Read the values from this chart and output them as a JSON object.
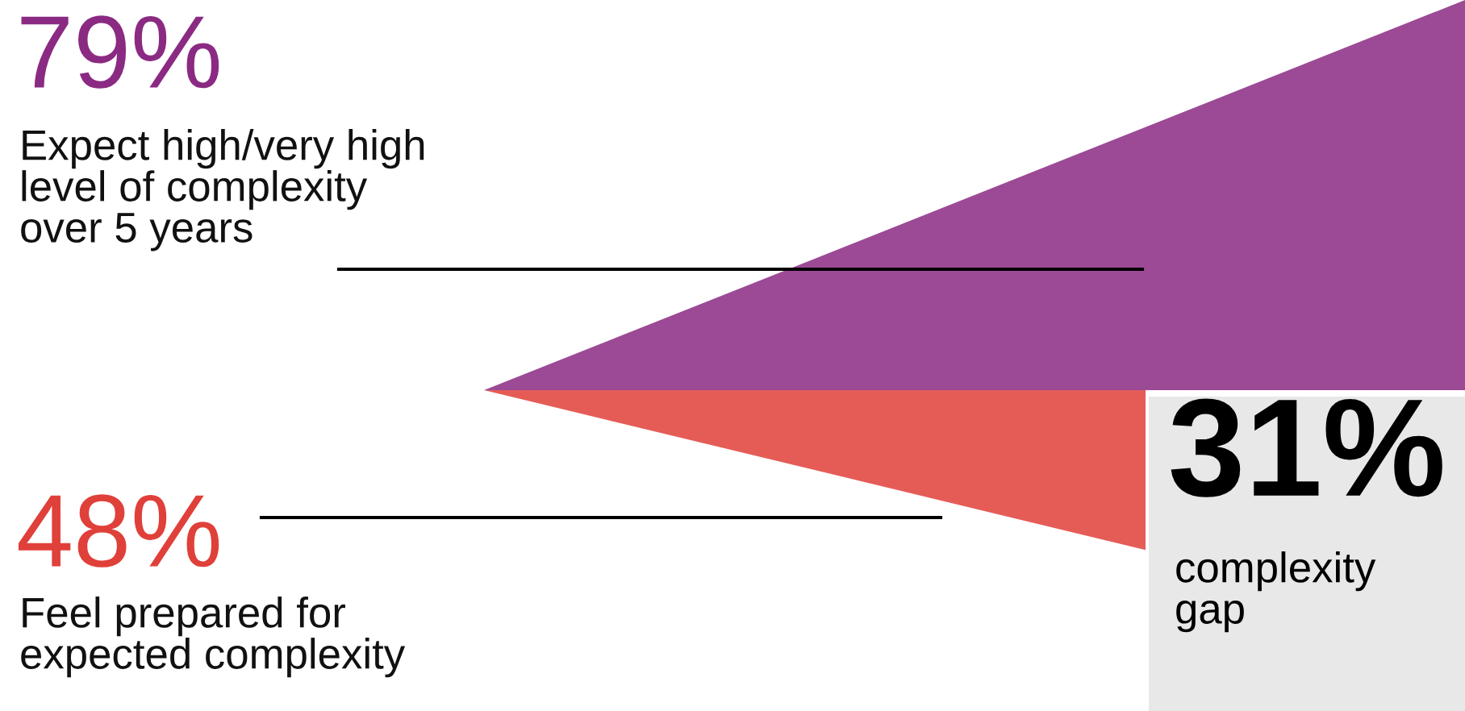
{
  "chart_data": {
    "type": "other",
    "categories": [
      "Expect high/very high\nlevel of complexity\nover 5 years",
      "Feel prepared for\nexpected complexity"
    ],
    "values": [
      79,
      48
    ],
    "value_labels": [
      "79%",
      "48%"
    ],
    "colors": [
      "#8b2a82",
      "#e0403a"
    ],
    "annotations": [
      "31%",
      "complexity\ngap"
    ]
  }
}
